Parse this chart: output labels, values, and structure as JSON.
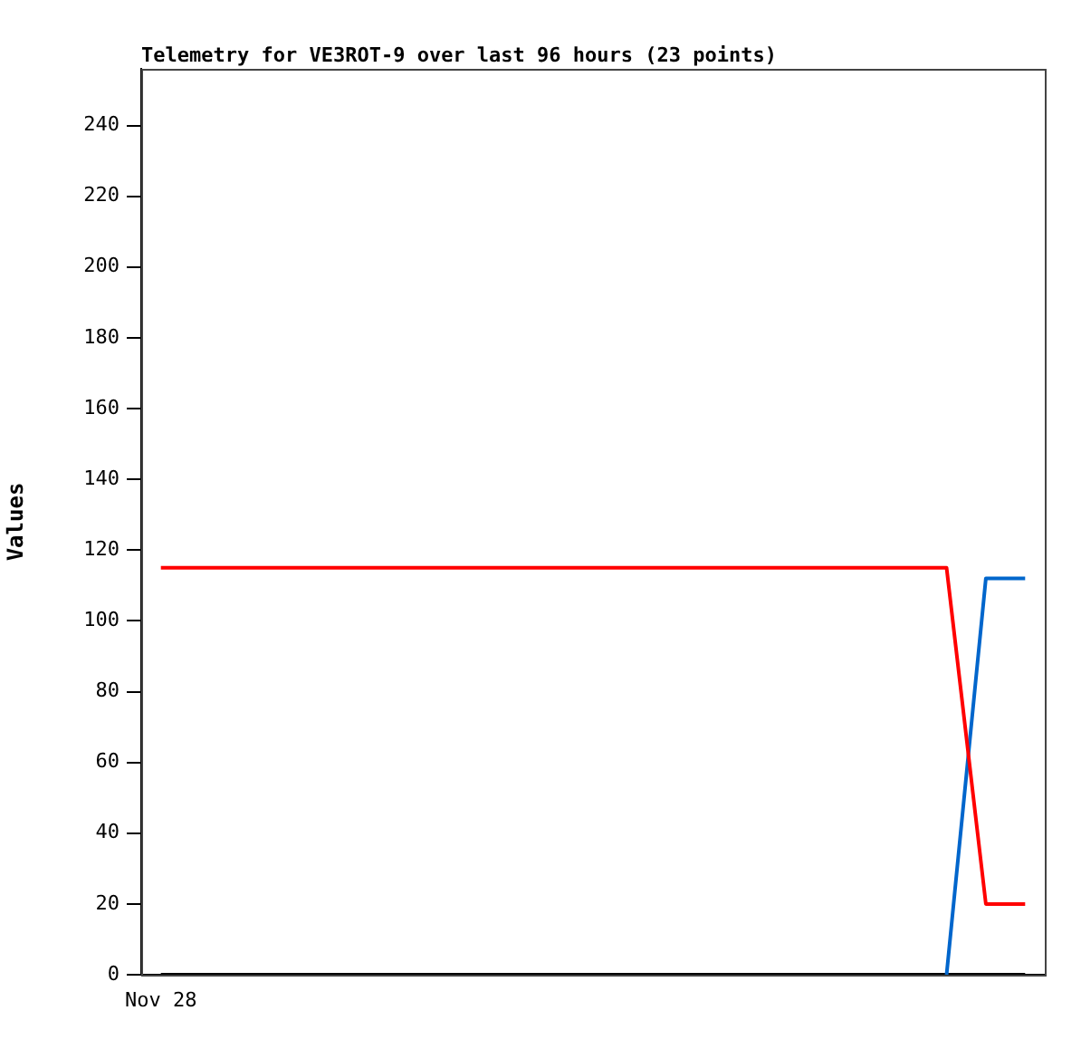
{
  "chart_data": {
    "type": "line",
    "title": "Telemetry for VE3ROT-9 over last 96 hours (23 points)",
    "ylabel": "Values",
    "categories": [
      "Nov 28",
      null,
      null,
      null,
      null,
      null,
      null,
      null,
      null,
      null,
      null,
      null,
      null,
      null,
      null,
      null,
      null,
      null,
      null,
      null,
      null,
      null,
      null
    ],
    "ylim": [
      0,
      256
    ],
    "yticks": [
      0,
      20,
      40,
      60,
      80,
      100,
      120,
      140,
      160,
      180,
      200,
      220,
      240
    ],
    "grid": false,
    "legend": false,
    "marker": "none",
    "line_style": "solid",
    "series": [
      {
        "color": "#ff0000",
        "values": [
          115,
          115,
          115,
          115,
          115,
          115,
          115,
          115,
          115,
          115,
          115,
          115,
          115,
          115,
          115,
          115,
          115,
          115,
          115,
          115,
          115,
          20,
          20
        ]
      },
      {
        "color": "#0066cc",
        "values": [
          null,
          null,
          null,
          null,
          null,
          null,
          null,
          null,
          null,
          null,
          null,
          null,
          null,
          null,
          null,
          null,
          null,
          null,
          null,
          null,
          0,
          112,
          112
        ]
      },
      {
        "color": "#000000",
        "values": [
          0,
          0,
          0,
          0,
          0,
          0,
          0,
          0,
          0,
          0,
          0,
          0,
          0,
          0,
          0,
          0,
          0,
          0,
          0,
          0,
          0,
          0,
          0
        ]
      }
    ]
  }
}
